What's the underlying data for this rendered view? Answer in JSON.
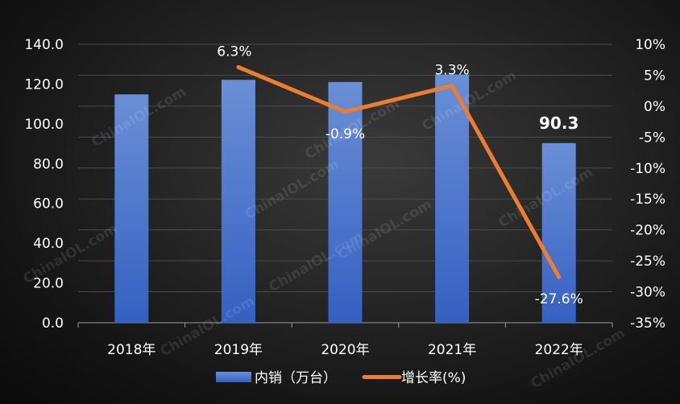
{
  "chart_data": {
    "type": "bar",
    "categories": [
      "2018年",
      "2019年",
      "2020年",
      "2021年",
      "2022年"
    ],
    "series": [
      {
        "name": "内销（万台）",
        "type": "bar",
        "axis": "left",
        "values": [
          114.8,
          122.1,
          121.0,
          124.8,
          90.3
        ],
        "color": "#4472c4"
      },
      {
        "name": "增长率(%)",
        "type": "line",
        "axis": "right",
        "values": [
          null,
          6.3,
          -0.9,
          3.3,
          -27.6
        ],
        "color": "#ed7d31"
      }
    ],
    "data_labels": {
      "bar": [
        "",
        "",
        "",
        "",
        "90.3"
      ],
      "line": [
        "",
        "6.3%",
        "-0.9%",
        "3.3%",
        "-27.6%"
      ]
    },
    "y_left": {
      "ylim": [
        0,
        140
      ],
      "ticks": [
        "0.0",
        "20.0",
        "40.0",
        "60.0",
        "80.0",
        "100.0",
        "120.0",
        "140.0"
      ]
    },
    "y_right": {
      "ylim": [
        -35,
        10
      ],
      "ticks": [
        "-35%",
        "-30%",
        "-25%",
        "-20%",
        "-15%",
        "-10%",
        "-5%",
        "0%",
        "5%",
        "10%"
      ]
    },
    "grid": true,
    "legend": {
      "position": "bottom",
      "entries": [
        "内销（万台）",
        "增长率(%)"
      ]
    },
    "watermark": "ChinaIOL.com"
  }
}
